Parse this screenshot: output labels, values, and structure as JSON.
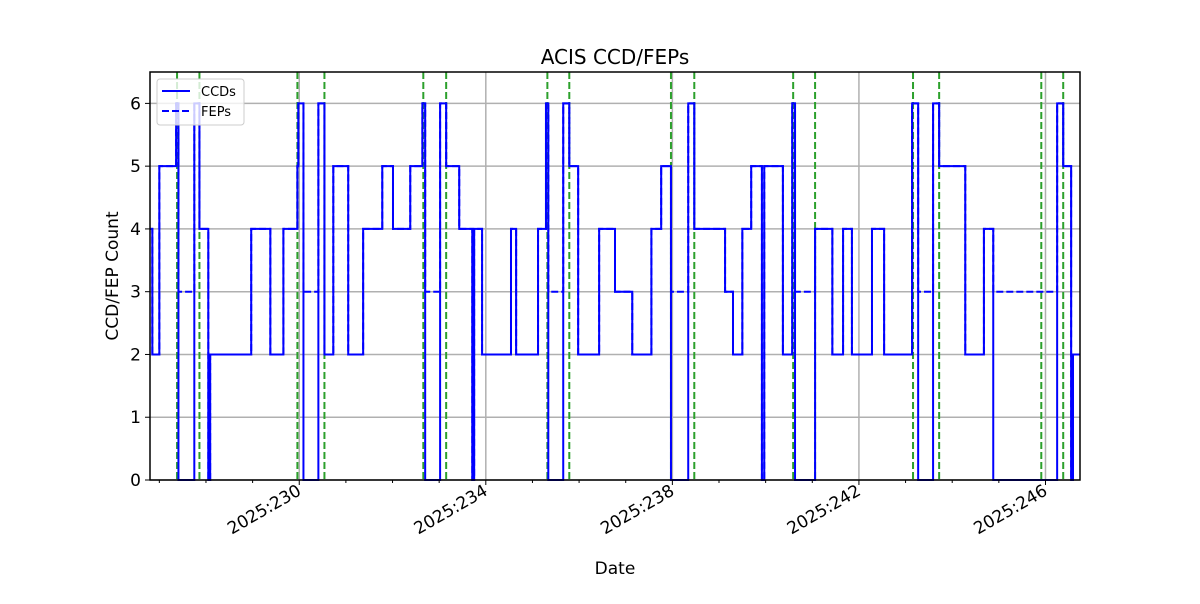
{
  "chart_data": {
    "type": "line",
    "title": "ACIS CCD/FEPs",
    "xlabel": "Date",
    "ylabel": "CCD/FEP Count",
    "xlim": [
      226.8,
      246.74
    ],
    "ylim": [
      0,
      6.5
    ],
    "grid": true,
    "legend_placement": "top-left",
    "yticks": [
      0,
      1,
      2,
      3,
      4,
      5,
      6
    ],
    "xticks": [
      {
        "value": 230,
        "label": "2025:230"
      },
      {
        "value": 234,
        "label": "2025:234"
      },
      {
        "value": 238,
        "label": "2025:238"
      },
      {
        "value": 242,
        "label": "2025:242"
      },
      {
        "value": 246,
        "label": "2025:246"
      }
    ],
    "xminor_ticks": [
      227,
      228,
      229,
      231,
      232,
      233,
      235,
      236,
      237,
      239,
      240,
      241,
      243,
      244,
      245
    ],
    "series": [
      {
        "name": "CCDs",
        "style": "solid",
        "color": "#0000ff",
        "steps": [
          [
            226.8,
            4
          ],
          [
            226.85,
            2
          ],
          [
            227.0,
            5
          ],
          [
            227.36,
            6
          ],
          [
            227.41,
            0
          ],
          [
            227.75,
            6
          ],
          [
            227.86,
            4
          ],
          [
            228.05,
            0
          ],
          [
            228.09,
            2
          ],
          [
            228.97,
            4
          ],
          [
            229.38,
            2
          ],
          [
            229.66,
            4
          ],
          [
            229.96,
            5
          ],
          [
            229.98,
            6
          ],
          [
            230.09,
            0
          ],
          [
            230.41,
            6
          ],
          [
            230.54,
            2
          ],
          [
            230.73,
            5
          ],
          [
            231.05,
            2
          ],
          [
            231.37,
            4
          ],
          [
            231.78,
            5
          ],
          [
            232.01,
            4
          ],
          [
            232.38,
            5
          ],
          [
            232.64,
            6
          ],
          [
            232.7,
            0
          ],
          [
            233.02,
            6
          ],
          [
            233.15,
            5
          ],
          [
            233.43,
            4
          ],
          [
            233.71,
            0
          ],
          [
            233.75,
            4
          ],
          [
            233.92,
            2
          ],
          [
            234.54,
            4
          ],
          [
            234.65,
            2
          ],
          [
            235.12,
            4
          ],
          [
            235.29,
            6
          ],
          [
            235.34,
            0
          ],
          [
            235.66,
            6
          ],
          [
            235.79,
            5
          ],
          [
            235.98,
            2
          ],
          [
            236.43,
            4
          ],
          [
            236.77,
            3
          ],
          [
            237.14,
            2
          ],
          [
            237.55,
            4
          ],
          [
            237.76,
            5
          ],
          [
            237.97,
            0
          ],
          [
            238.34,
            6
          ],
          [
            238.47,
            4
          ],
          [
            239.13,
            3
          ],
          [
            239.3,
            2
          ],
          [
            239.5,
            4
          ],
          [
            239.69,
            5
          ],
          [
            239.92,
            0
          ],
          [
            239.97,
            5
          ],
          [
            240.37,
            2
          ],
          [
            240.57,
            6
          ],
          [
            240.63,
            0
          ],
          [
            241.06,
            4
          ],
          [
            241.43,
            2
          ],
          [
            241.66,
            4
          ],
          [
            241.85,
            2
          ],
          [
            242.28,
            4
          ],
          [
            242.54,
            2
          ],
          [
            243.14,
            6
          ],
          [
            243.27,
            0
          ],
          [
            243.59,
            6
          ],
          [
            243.72,
            5
          ],
          [
            244.28,
            2
          ],
          [
            244.68,
            4
          ],
          [
            244.88,
            0
          ],
          [
            246.25,
            6
          ],
          [
            246.38,
            5
          ],
          [
            246.55,
            0
          ],
          [
            246.59,
            2
          ],
          [
            246.74,
            2
          ]
        ]
      },
      {
        "name": "FEPs",
        "style": "dashed",
        "color": "#0000ff",
        "steps": [
          [
            226.8,
            4
          ],
          [
            226.85,
            2
          ],
          [
            227.0,
            5
          ],
          [
            227.36,
            6
          ],
          [
            227.41,
            3
          ],
          [
            227.75,
            6
          ],
          [
            227.86,
            4
          ],
          [
            228.05,
            0
          ],
          [
            228.09,
            2
          ],
          [
            228.97,
            4
          ],
          [
            229.38,
            2
          ],
          [
            229.66,
            4
          ],
          [
            229.96,
            5
          ],
          [
            229.98,
            6
          ],
          [
            230.09,
            3
          ],
          [
            230.41,
            6
          ],
          [
            230.54,
            2
          ],
          [
            230.73,
            5
          ],
          [
            231.05,
            2
          ],
          [
            231.37,
            4
          ],
          [
            231.78,
            5
          ],
          [
            232.01,
            4
          ],
          [
            232.38,
            5
          ],
          [
            232.64,
            6
          ],
          [
            232.7,
            3
          ],
          [
            233.02,
            6
          ],
          [
            233.15,
            5
          ],
          [
            233.43,
            4
          ],
          [
            233.71,
            0
          ],
          [
            233.75,
            4
          ],
          [
            233.92,
            2
          ],
          [
            234.54,
            4
          ],
          [
            234.65,
            2
          ],
          [
            235.12,
            4
          ],
          [
            235.29,
            6
          ],
          [
            235.34,
            3
          ],
          [
            235.66,
            6
          ],
          [
            235.79,
            5
          ],
          [
            235.98,
            2
          ],
          [
            236.43,
            4
          ],
          [
            236.77,
            3
          ],
          [
            237.14,
            2
          ],
          [
            237.55,
            4
          ],
          [
            237.76,
            5
          ],
          [
            237.97,
            3
          ],
          [
            238.34,
            6
          ],
          [
            238.47,
            4
          ],
          [
            239.13,
            3
          ],
          [
            239.3,
            2
          ],
          [
            239.5,
            4
          ],
          [
            239.69,
            5
          ],
          [
            239.92,
            0
          ],
          [
            239.97,
            5
          ],
          [
            240.37,
            2
          ],
          [
            240.57,
            6
          ],
          [
            240.63,
            3
          ],
          [
            241.06,
            4
          ],
          [
            241.43,
            2
          ],
          [
            241.66,
            4
          ],
          [
            241.85,
            2
          ],
          [
            242.28,
            4
          ],
          [
            242.54,
            2
          ],
          [
            243.14,
            6
          ],
          [
            243.27,
            3
          ],
          [
            243.59,
            6
          ],
          [
            243.72,
            5
          ],
          [
            244.28,
            2
          ],
          [
            244.68,
            4
          ],
          [
            244.88,
            3
          ],
          [
            246.15,
            3
          ],
          [
            246.25,
            6
          ],
          [
            246.38,
            5
          ],
          [
            246.55,
            0
          ],
          [
            246.59,
            2
          ],
          [
            246.74,
            2
          ]
        ]
      }
    ],
    "vlines": {
      "color": "#2ca02c",
      "style": "dashed",
      "x": [
        227.38,
        227.86,
        229.96,
        230.54,
        232.66,
        233.15,
        235.32,
        235.79,
        237.97,
        238.47,
        240.59,
        241.06,
        243.16,
        243.72,
        245.91,
        246.38
      ]
    }
  }
}
